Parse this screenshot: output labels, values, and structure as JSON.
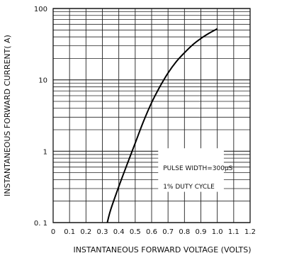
{
  "chart_data": {
    "type": "line",
    "title": "",
    "xlabel": "INSTANTANEOUS FORWARD VOLTAGE (VOLTS)",
    "ylabel": "INSTANTANEOUS FORWARD CURRENT( A)",
    "xlim": [
      0,
      1.2
    ],
    "ylim": [
      0.1,
      100
    ],
    "yscale": "log",
    "grid": true,
    "x_ticks": [
      "0",
      "0.1",
      "0.2",
      "0.3",
      "0.4",
      "0.5",
      "0.6",
      "0.7",
      "0.8",
      "0.9",
      "1.0",
      "1.1",
      "1.2"
    ],
    "y_ticks": [
      {
        "value": 100,
        "label": "100"
      },
      {
        "value": 10,
        "label": "10"
      },
      {
        "value": 1,
        "label": "1"
      },
      {
        "value": 0.1,
        "label": "0. 1"
      }
    ],
    "annotations": [
      "PULSE WIDTH=300μS",
      "1% DUTY CYCLE"
    ],
    "series": [
      {
        "x": [
          0.33,
          0.35,
          0.4,
          0.45,
          0.5,
          0.55,
          0.6,
          0.65,
          0.7,
          0.75,
          0.8,
          0.85,
          0.9,
          0.95,
          1.0
        ],
        "y": [
          0.1,
          0.15,
          0.32,
          0.65,
          1.3,
          2.6,
          4.8,
          8.0,
          12.5,
          18.0,
          24.0,
          31.0,
          38.0,
          45.0,
          52.0
        ]
      }
    ]
  }
}
